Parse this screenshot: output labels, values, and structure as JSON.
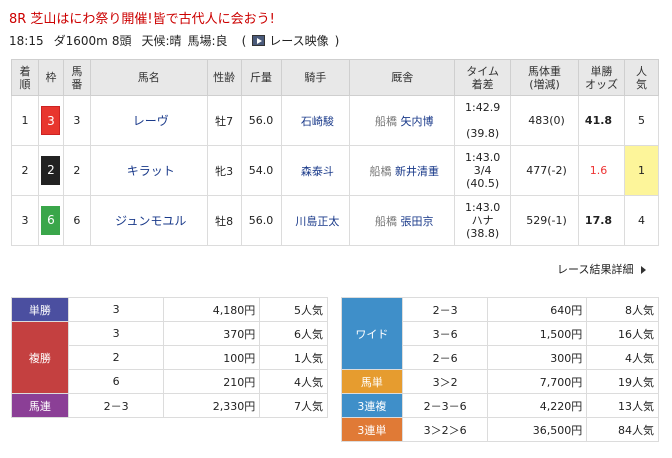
{
  "race": {
    "title": "8R 芝山はにわ祭り開催!皆で古代人に会おう!",
    "time": "18:15",
    "course": "ダ1600m",
    "heads": "8頭",
    "weather": "天候:晴",
    "track": "馬場:良",
    "video_open": "(",
    "video_label": "レース映像",
    "video_close": ")"
  },
  "table": {
    "headers": {
      "rank": [
        "着",
        "順"
      ],
      "waku": "枠",
      "umaban": [
        "馬",
        "番"
      ],
      "name": "馬名",
      "sexage": "性齢",
      "kinryo": "斤量",
      "jockey": "騎手",
      "trainer": "厩舎",
      "time": [
        "タイム",
        "着差"
      ],
      "weight": [
        "馬体重",
        "(増減)"
      ],
      "odds": [
        "単勝",
        "オッズ"
      ],
      "pop": [
        "人",
        "気"
      ]
    },
    "rows": [
      {
        "rank": "1",
        "waku": "3",
        "umaban": "3",
        "name": "レーヴ",
        "sexage": "牡7",
        "kinryo": "56.0",
        "jockey": "石崎駿",
        "loc": "船橋",
        "trainer": "矢内博",
        "time1": "1:42.9",
        "time2": "",
        "time3": "(39.8)",
        "weight": "483(0)",
        "odds": "41.8",
        "pop": "5"
      },
      {
        "rank": "2",
        "waku": "2",
        "umaban": "2",
        "name": "キラット",
        "sexage": "牝3",
        "kinryo": "54.0",
        "jockey": "森泰斗",
        "loc": "船橋",
        "trainer": "新井清重",
        "time1": "1:43.0",
        "time2": "3/4",
        "time3": "(40.5)",
        "weight": "477(-2)",
        "odds": "1.6",
        "pop": "1"
      },
      {
        "rank": "3",
        "waku": "6",
        "umaban": "6",
        "name": "ジュンモユル",
        "sexage": "牡8",
        "kinryo": "56.0",
        "jockey": "川島正太",
        "loc": "船橋",
        "trainer": "張田京",
        "time1": "1:43.0",
        "time2": "ハナ",
        "time3": "(38.8)",
        "weight": "529(-1)",
        "odds": "17.8",
        "pop": "4"
      }
    ]
  },
  "more_link": "レース結果詳細",
  "payout_left": {
    "tansho": {
      "label": "単勝",
      "rows": [
        {
          "num": "3",
          "amt": "4,180円",
          "pop": "5人気"
        }
      ]
    },
    "fukusho": {
      "label": "複勝",
      "rows": [
        {
          "num": "3",
          "amt": "370円",
          "pop": "6人気"
        },
        {
          "num": "2",
          "amt": "100円",
          "pop": "1人気"
        },
        {
          "num": "6",
          "amt": "210円",
          "pop": "4人気"
        }
      ]
    },
    "umaren": {
      "label": "馬連",
      "rows": [
        {
          "num": "2－3",
          "amt": "2,330円",
          "pop": "7人気"
        }
      ]
    }
  },
  "payout_right": {
    "wide": {
      "label": "ワイド",
      "rows": [
        {
          "num": "2－3",
          "amt": "640円",
          "pop": "8人気"
        },
        {
          "num": "3－6",
          "amt": "1,500円",
          "pop": "16人気"
        },
        {
          "num": "2－6",
          "amt": "300円",
          "pop": "4人気"
        }
      ]
    },
    "umatan": {
      "label": "馬単",
      "rows": [
        {
          "num": "3＞2",
          "amt": "7,700円",
          "pop": "19人気"
        }
      ]
    },
    "sanfuku": {
      "label": "3連複",
      "rows": [
        {
          "num": "2－3－6",
          "amt": "4,220円",
          "pop": "13人気"
        }
      ]
    },
    "santan": {
      "label": "3連単",
      "rows": [
        {
          "num": "3＞2＞6",
          "amt": "36,500円",
          "pop": "84人気"
        }
      ]
    }
  }
}
